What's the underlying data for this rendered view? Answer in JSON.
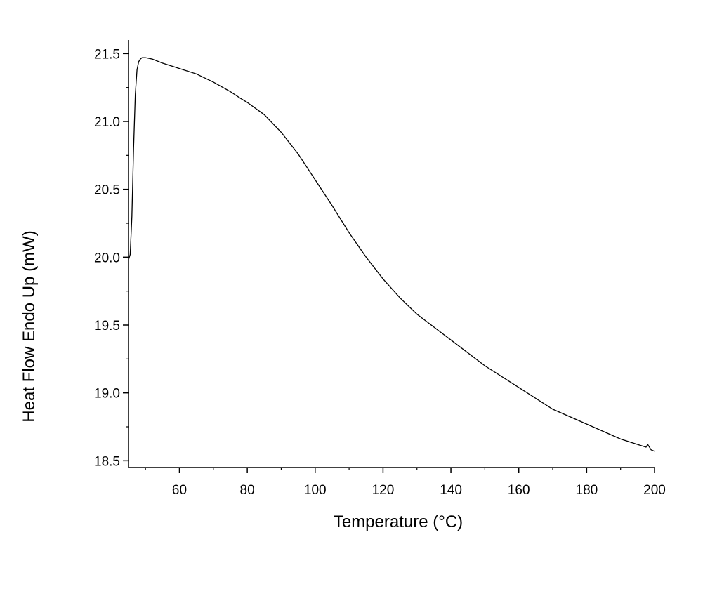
{
  "chart_data": {
    "type": "line",
    "title": "",
    "xlabel": "Temperature (°C)",
    "ylabel": "Heat Flow Endo Up (mW)",
    "xlim": [
      45,
      200
    ],
    "ylim": [
      18.45,
      21.6
    ],
    "x_ticks": [
      60,
      80,
      100,
      120,
      140,
      160,
      180,
      200
    ],
    "x_tick_labels": [
      "60",
      "80",
      "100",
      "120",
      "140",
      "160",
      "180",
      "200"
    ],
    "y_ticks": [
      18.5,
      19.0,
      19.5,
      20.0,
      20.5,
      21.0,
      21.5
    ],
    "y_tick_labels": [
      "18.5",
      "19.0",
      "19.5",
      "20.0",
      "20.5",
      "21.0",
      "21.5"
    ],
    "grid": false,
    "legend": "none",
    "line_color": "#000000",
    "series": [
      {
        "x": [
          45.0,
          45.5,
          46.0,
          46.5,
          47.0,
          47.5,
          48.0,
          48.5,
          49.0,
          50.0,
          52.0,
          55.0,
          60.0,
          65.0,
          70.0,
          75.0,
          78.0,
          80.0,
          85.0,
          90.0,
          95.0,
          100.0,
          105.0,
          110.0,
          115.0,
          120.0,
          125.0,
          130.0,
          140.0,
          150.0,
          160.0,
          170.0,
          180.0,
          190.0,
          195.0,
          197.5,
          198.0,
          198.5,
          199.0,
          200.0
        ],
        "y": [
          19.98,
          20.02,
          20.3,
          20.8,
          21.2,
          21.38,
          21.44,
          21.46,
          21.47,
          21.47,
          21.46,
          21.43,
          21.39,
          21.35,
          21.29,
          21.22,
          21.17,
          21.14,
          21.05,
          20.92,
          20.76,
          20.57,
          20.38,
          20.18,
          20.0,
          19.84,
          19.7,
          19.58,
          19.39,
          19.2,
          19.04,
          18.88,
          18.77,
          18.66,
          18.62,
          18.6,
          18.62,
          18.6,
          18.58,
          18.57
        ]
      }
    ]
  }
}
